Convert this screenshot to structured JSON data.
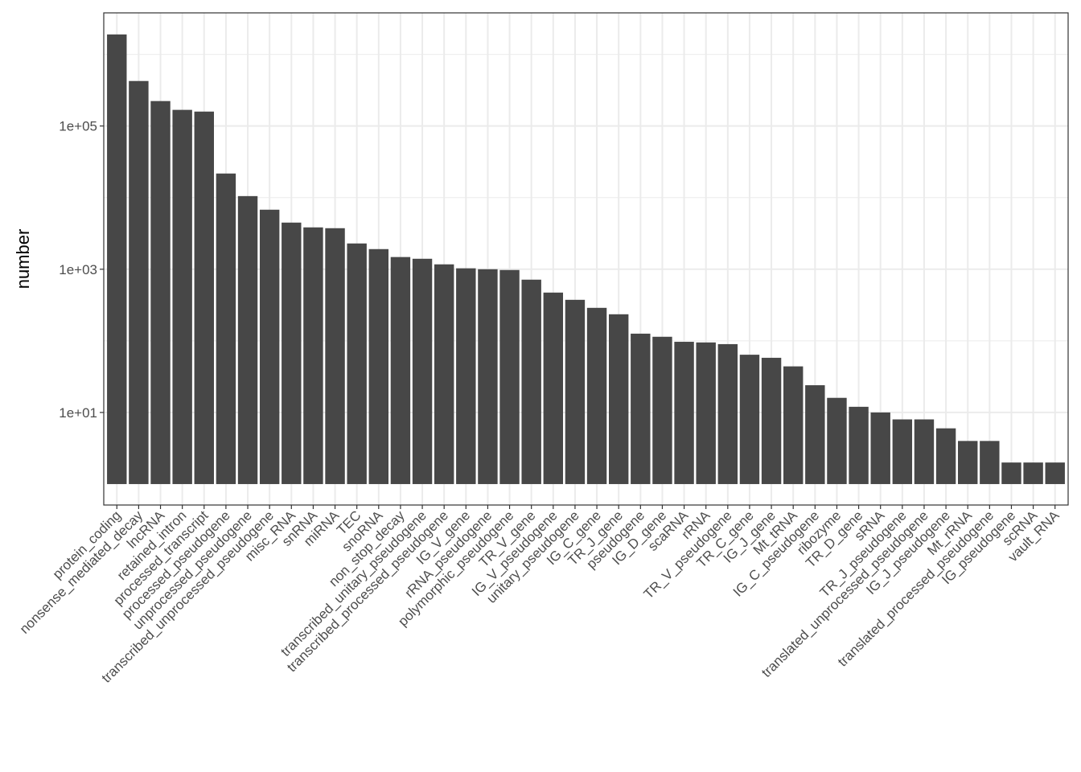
{
  "chart_data": {
    "type": "bar",
    "y_label": "number",
    "categories": [
      "protein_coding",
      "nonsense_mediated_decay",
      "lncRNA",
      "retained_intron",
      "processed_transcript",
      "processed_pseudogene",
      "unprocessed_pseudogene",
      "transcribed_unprocessed_pseudogene",
      "misc_RNA",
      "snRNA",
      "miRNA",
      "TEC",
      "snoRNA",
      "non_stop_decay",
      "transcribed_unitary_pseudogene",
      "transcribed_processed_pseudogene",
      "IG_V_gene",
      "rRNA_pseudogene",
      "polymorphic_pseudogene",
      "TR_V_gene",
      "IG_V_pseudogene",
      "unitary_pseudogene",
      "IG_C_gene",
      "TR_J_gene",
      "pseudogene",
      "IG_D_gene",
      "scaRNA",
      "rRNA",
      "TR_V_pseudogene",
      "TR_C_gene",
      "IG_J_gene",
      "Mt_tRNA",
      "IG_C_pseudogene",
      "ribozyme",
      "TR_D_gene",
      "sRNA",
      "TR_J_pseudogene",
      "translated_unprocessed_pseudogene",
      "IG_J_pseudogene",
      "Mt_rRNA",
      "translated_processed_pseudogene",
      "IG_pseudogene",
      "scRNA",
      "vault_RNA"
    ],
    "values": [
      1900000,
      425000,
      223000,
      168000,
      159000,
      21700,
      10500,
      6780,
      4480,
      3840,
      3740,
      2290,
      1910,
      1480,
      1400,
      1170,
      1030,
      1000,
      975,
      715,
      472,
      374,
      289,
      235,
      126,
      114,
      97,
      95,
      90,
      64,
      58,
      44,
      24,
      16,
      12,
      10,
      8,
      8,
      6,
      4,
      4,
      2,
      2,
      2
    ],
    "color": "#474747",
    "log_y": true,
    "ylim": [
      0.51,
      3800000
    ],
    "yticks": [
      {
        "value": 10,
        "label": "1e+01"
      },
      {
        "value": 1000,
        "label": "1e+03"
      },
      {
        "value": 100000,
        "label": "1e+05"
      }
    ],
    "minor_yticks": [
      100,
      10000,
      1000000
    ],
    "grid": true
  }
}
